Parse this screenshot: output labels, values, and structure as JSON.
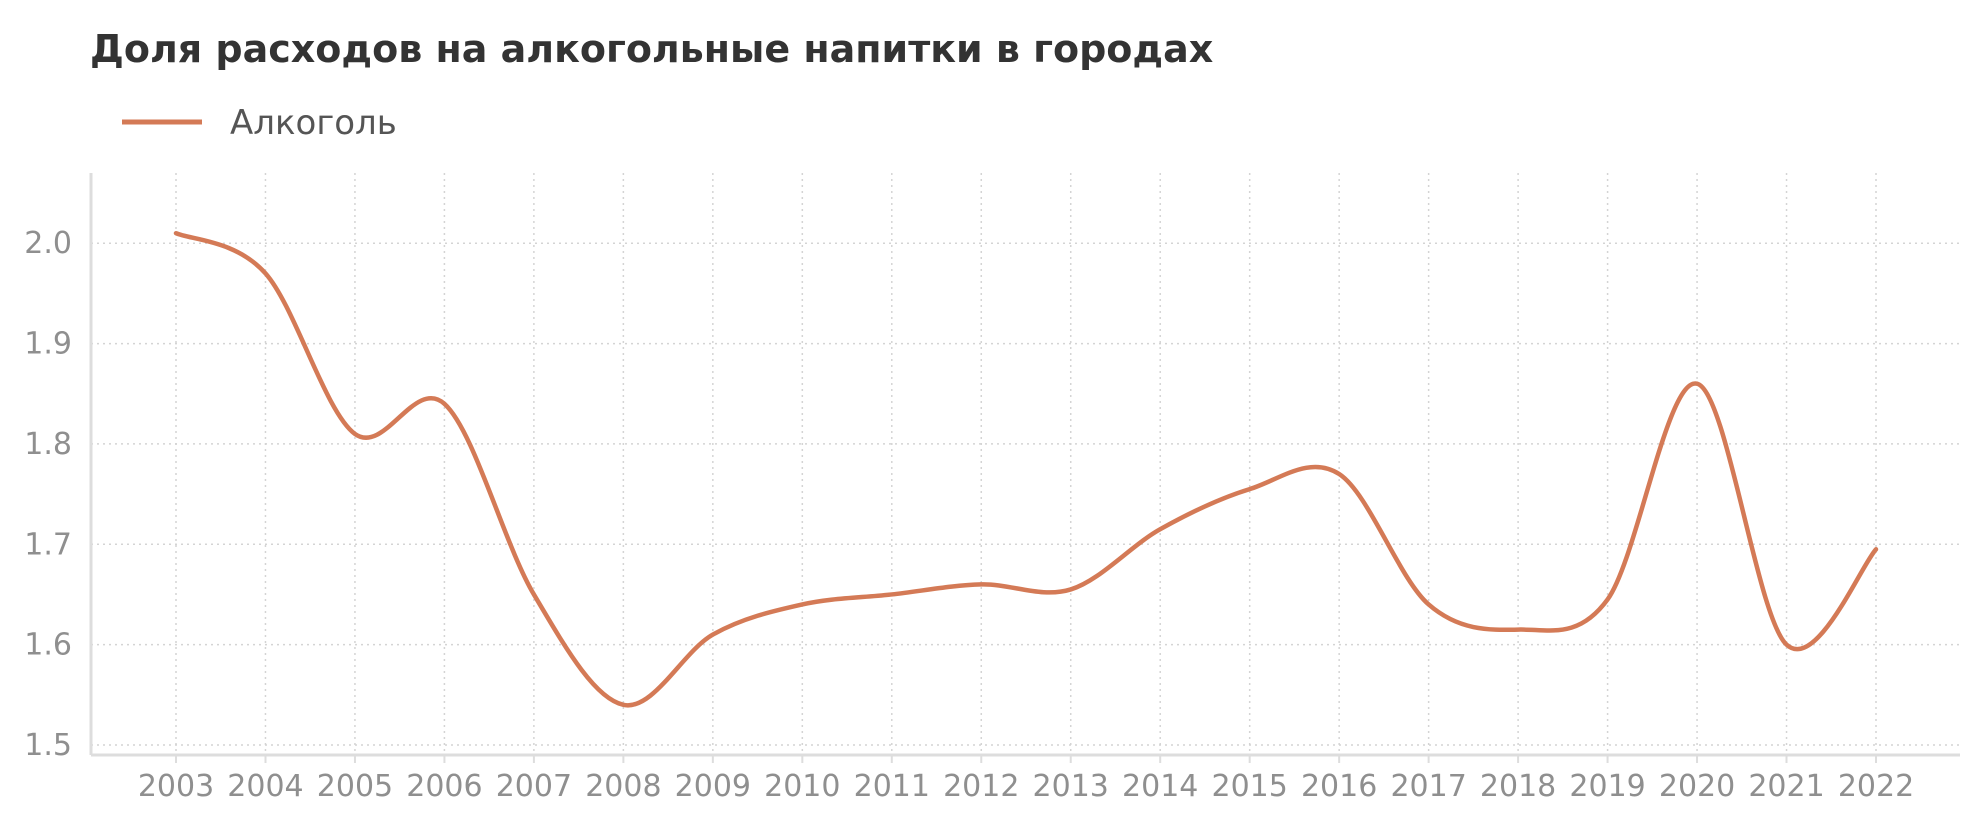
{
  "chart_data": {
    "type": "line",
    "title": "Доля расходов на алкогольные напитки в городах",
    "xlabel": "",
    "ylabel": "",
    "x": [
      "2003",
      "2004",
      "2005",
      "2006",
      "2007",
      "2008",
      "2009",
      "2010",
      "2011",
      "2012",
      "2013",
      "2014",
      "2015",
      "2016",
      "2017",
      "2018",
      "2019",
      "2020",
      "2021",
      "2022"
    ],
    "series": [
      {
        "name": "Алкоголь",
        "color": "#d47a56",
        "values": [
          2.01,
          1.97,
          1.81,
          1.84,
          1.65,
          1.54,
          1.61,
          1.64,
          1.65,
          1.66,
          1.655,
          1.715,
          1.755,
          1.77,
          1.64,
          1.615,
          1.645,
          1.86,
          1.6,
          1.695
        ]
      }
    ],
    "yticks": [
      "1.5",
      "1.6",
      "1.7",
      "1.8",
      "1.9",
      "2.0"
    ],
    "ylim": [
      1.49,
      2.07
    ],
    "grid": true,
    "legend_position": "top-left"
  }
}
